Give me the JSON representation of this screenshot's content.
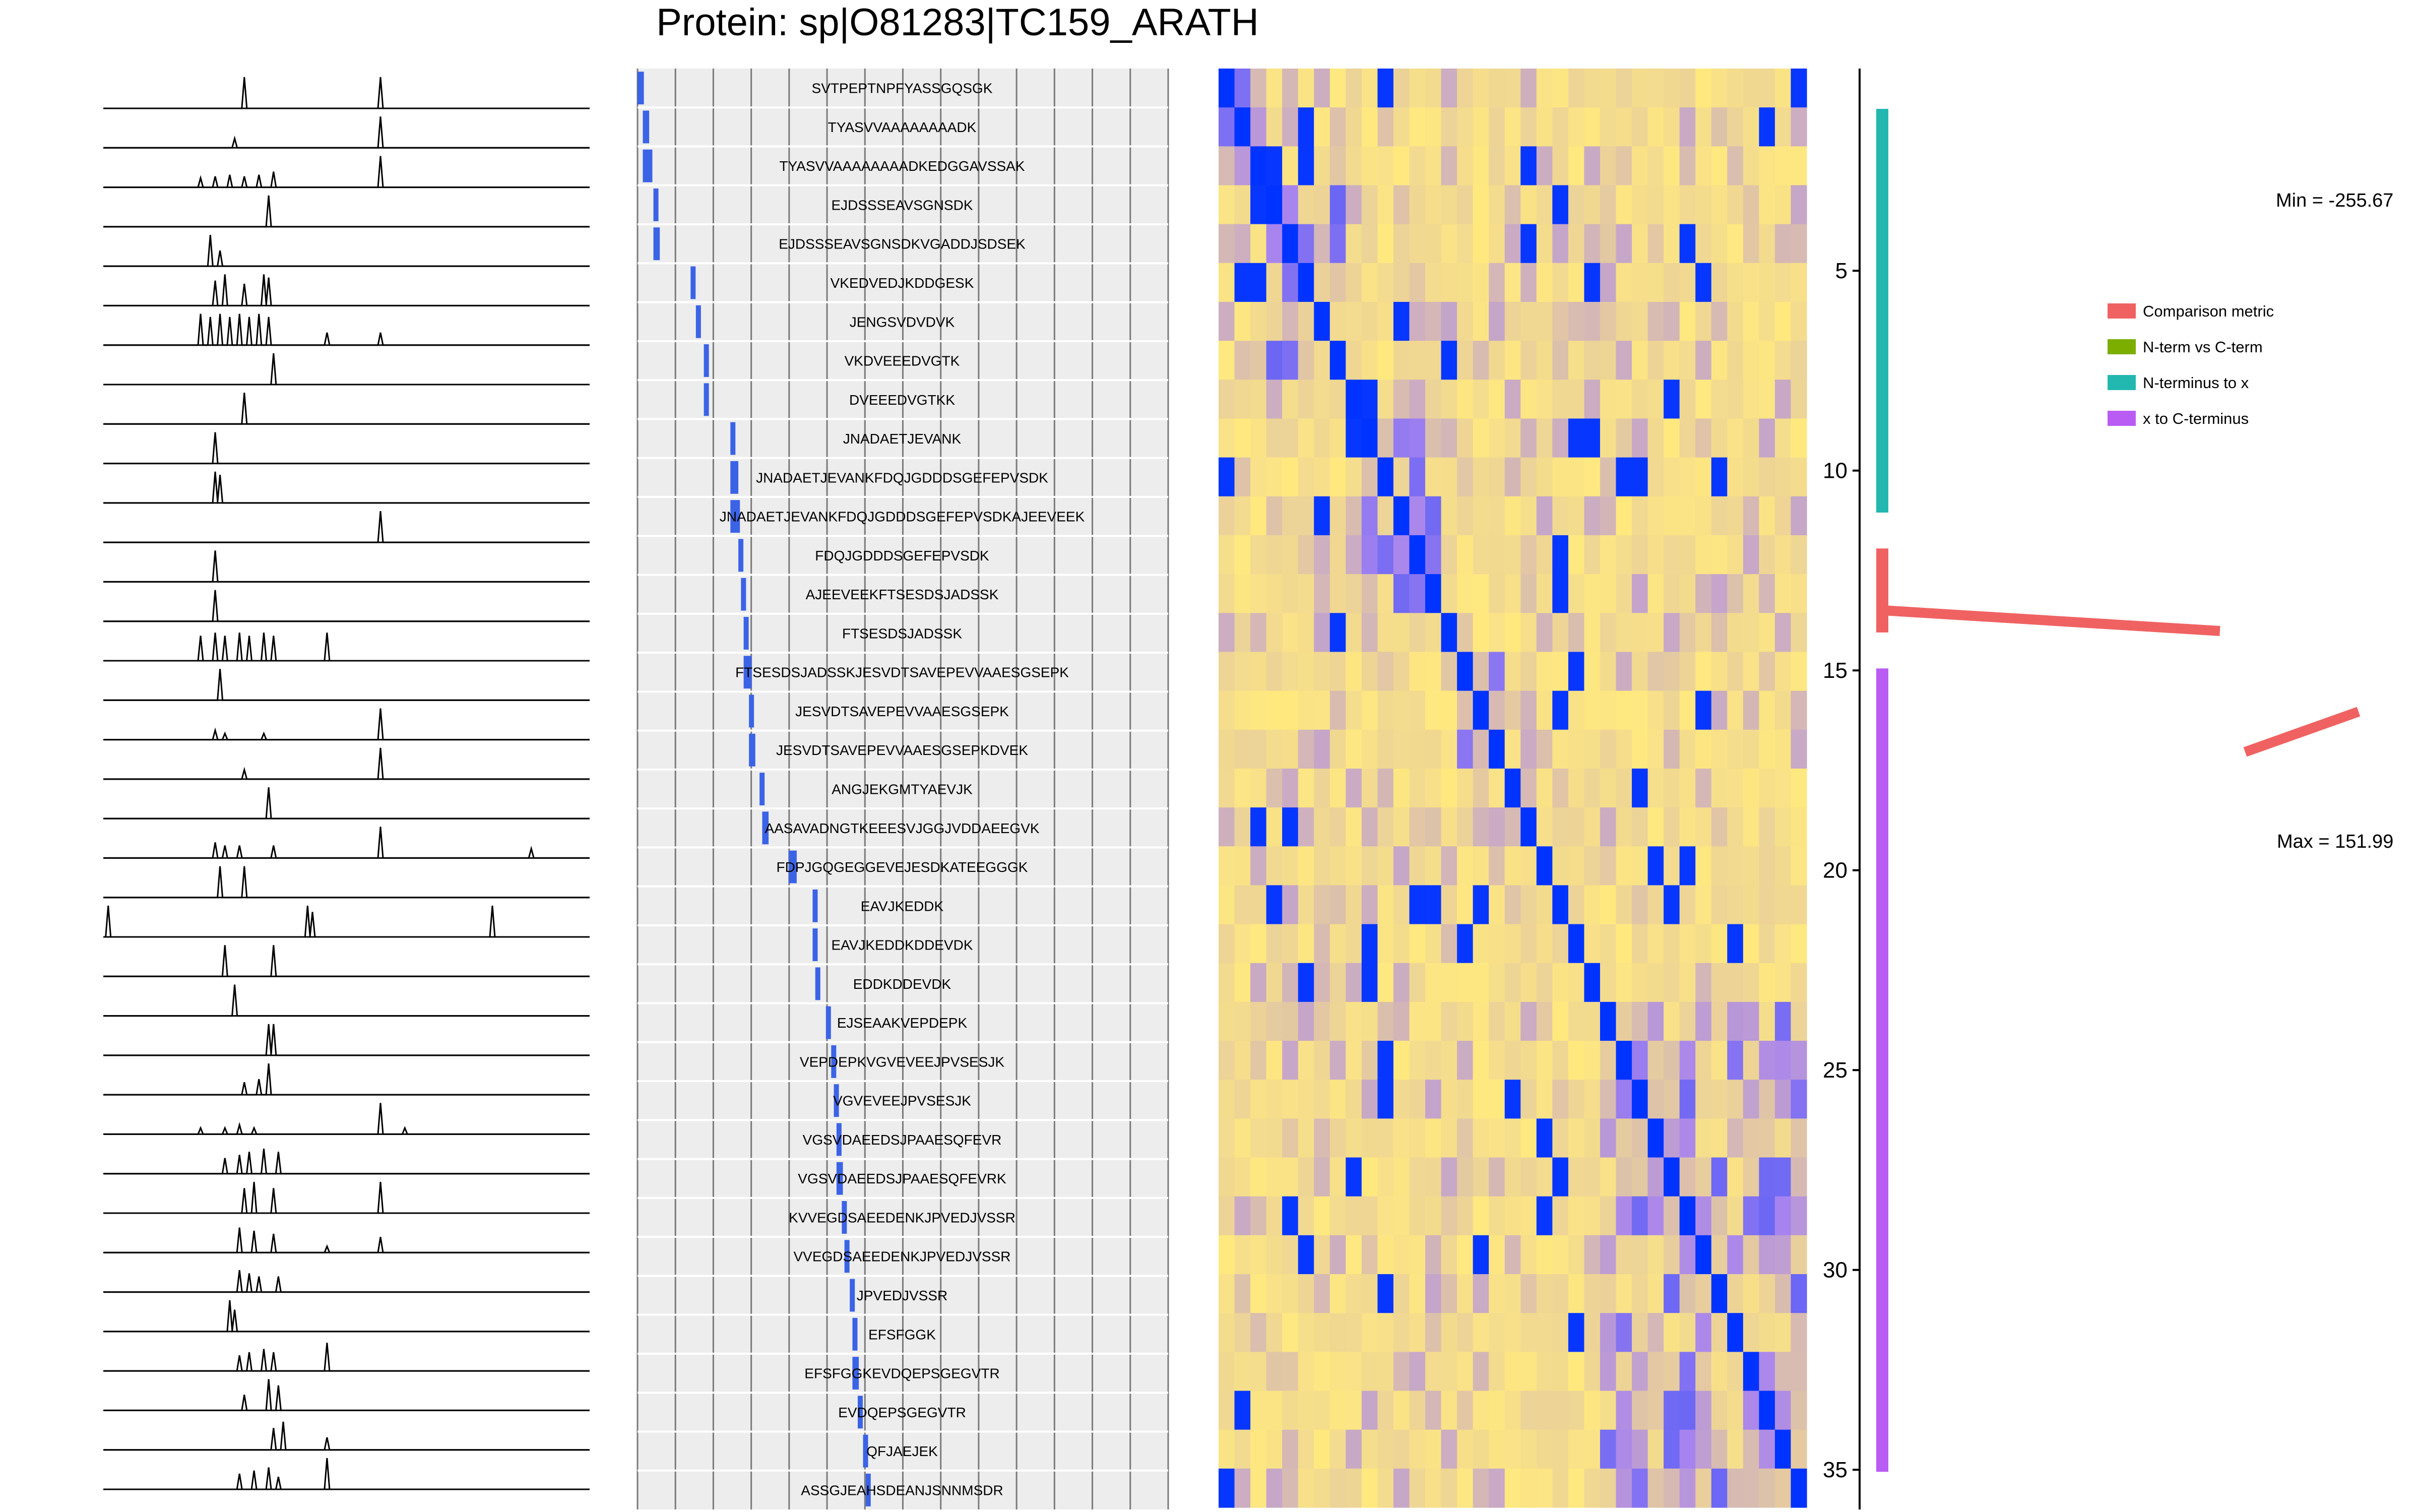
{
  "title": "Protein: sp|O81283|TC159_ARATH",
  "chart_data": [
    {
      "type": "line",
      "panel": "peptide-elution-profiles",
      "rows": 36,
      "profiles": [
        [
          [
            0.29,
            1
          ],
          [
            0.57,
            1
          ]
        ],
        [
          [
            0.27,
            0.3
          ],
          [
            0.57,
            1
          ]
        ],
        [
          [
            0.2,
            0.3
          ],
          [
            0.23,
            0.35
          ],
          [
            0.26,
            0.4
          ],
          [
            0.29,
            0.35
          ],
          [
            0.32,
            0.4
          ],
          [
            0.35,
            0.5
          ],
          [
            0.57,
            1
          ]
        ],
        [
          [
            0.34,
            1
          ]
        ],
        [
          [
            0.22,
            1
          ],
          [
            0.24,
            0.5
          ]
        ],
        [
          [
            0.23,
            0.8
          ],
          [
            0.25,
            1
          ],
          [
            0.29,
            0.7
          ],
          [
            0.33,
            1
          ],
          [
            0.34,
            0.9
          ]
        ],
        [
          [
            0.2,
            1
          ],
          [
            0.22,
            0.9
          ],
          [
            0.24,
            1
          ],
          [
            0.26,
            0.9
          ],
          [
            0.28,
            1
          ],
          [
            0.3,
            0.9
          ],
          [
            0.32,
            1
          ],
          [
            0.34,
            0.9
          ],
          [
            0.46,
            0.4
          ],
          [
            0.57,
            0.4
          ]
        ],
        [
          [
            0.35,
            1
          ]
        ],
        [
          [
            0.29,
            1
          ]
        ],
        [
          [
            0.23,
            1
          ]
        ],
        [
          [
            0.23,
            1
          ],
          [
            0.24,
            0.9
          ]
        ],
        [
          [
            0.57,
            1
          ]
        ],
        [
          [
            0.23,
            1
          ]
        ],
        [
          [
            0.23,
            1
          ]
        ],
        [
          [
            0.2,
            0.8
          ],
          [
            0.23,
            0.9
          ],
          [
            0.25,
            0.8
          ],
          [
            0.28,
            0.9
          ],
          [
            0.3,
            0.8
          ],
          [
            0.33,
            0.9
          ],
          [
            0.35,
            0.8
          ],
          [
            0.46,
            0.9
          ]
        ],
        [
          [
            0.24,
            1
          ]
        ],
        [
          [
            0.23,
            0.3
          ],
          [
            0.25,
            0.2
          ],
          [
            0.33,
            0.2
          ],
          [
            0.57,
            1
          ]
        ],
        [
          [
            0.29,
            0.3
          ],
          [
            0.57,
            1
          ]
        ],
        [
          [
            0.34,
            1
          ]
        ],
        [
          [
            0.23,
            0.5
          ],
          [
            0.25,
            0.4
          ],
          [
            0.28,
            0.4
          ],
          [
            0.35,
            0.4
          ],
          [
            0.57,
            1
          ],
          [
            0.88,
            0.3
          ]
        ],
        [
          [
            0.24,
            1
          ],
          [
            0.29,
            1
          ]
        ],
        [
          [
            0.01,
            1
          ],
          [
            0.42,
            1
          ],
          [
            0.43,
            0.8
          ],
          [
            0.8,
            1
          ]
        ],
        [
          [
            0.25,
            1
          ],
          [
            0.35,
            1
          ]
        ],
        [
          [
            0.27,
            1
          ]
        ],
        [
          [
            0.34,
            1
          ],
          [
            0.35,
            1
          ]
        ],
        [
          [
            0.29,
            0.4
          ],
          [
            0.32,
            0.5
          ],
          [
            0.34,
            1
          ]
        ],
        [
          [
            0.2,
            0.2
          ],
          [
            0.25,
            0.2
          ],
          [
            0.28,
            0.3
          ],
          [
            0.31,
            0.2
          ],
          [
            0.57,
            1
          ],
          [
            0.62,
            0.2
          ]
        ],
        [
          [
            0.25,
            0.5
          ],
          [
            0.28,
            0.6
          ],
          [
            0.3,
            0.7
          ],
          [
            0.33,
            0.8
          ],
          [
            0.36,
            0.7
          ]
        ],
        [
          [
            0.29,
            0.8
          ],
          [
            0.31,
            1
          ],
          [
            0.35,
            0.8
          ],
          [
            0.57,
            1
          ]
        ],
        [
          [
            0.28,
            0.8
          ],
          [
            0.31,
            0.7
          ],
          [
            0.35,
            0.6
          ],
          [
            0.46,
            0.2
          ],
          [
            0.57,
            0.5
          ]
        ],
        [
          [
            0.28,
            0.7
          ],
          [
            0.3,
            0.6
          ],
          [
            0.32,
            0.5
          ],
          [
            0.36,
            0.5
          ]
        ],
        [
          [
            0.26,
            1
          ],
          [
            0.27,
            0.7
          ]
        ],
        [
          [
            0.28,
            0.5
          ],
          [
            0.3,
            0.6
          ],
          [
            0.33,
            0.7
          ],
          [
            0.35,
            0.6
          ],
          [
            0.46,
            0.9
          ]
        ],
        [
          [
            0.29,
            0.5
          ],
          [
            0.34,
            1
          ],
          [
            0.36,
            0.8
          ]
        ],
        [
          [
            0.35,
            0.7
          ],
          [
            0.37,
            0.9
          ],
          [
            0.46,
            0.4
          ]
        ],
        [
          [
            0.28,
            0.5
          ],
          [
            0.31,
            0.6
          ],
          [
            0.34,
            0.7
          ],
          [
            0.36,
            0.4
          ],
          [
            0.46,
            1
          ]
        ]
      ]
    },
    {
      "type": "bar",
      "panel": "peptide-coverage",
      "orientation": "horizontal",
      "peptides": [
        {
          "label": "SVTPEPTNPFYASSGQSGK",
          "start": 0.0,
          "end": 0.02
        },
        {
          "label": "TYASVVAAAAAAAADK",
          "start": 0.01,
          "end": 0.03
        },
        {
          "label": "TYASVVAAAAAAAADKEDGGAVSSAK",
          "start": 0.01,
          "end": 0.04
        },
        {
          "label": "EJDSSSEAVSGNSDK",
          "start": 0.03,
          "end": 0.045
        },
        {
          "label": "EJDSSSEAVSGNSDKVGADDJSDSEK",
          "start": 0.03,
          "end": 0.05
        },
        {
          "label": "VKEDVEDJKDDGESK",
          "start": 0.1,
          "end": 0.11
        },
        {
          "label": "JENGSVDVDVK",
          "start": 0.11,
          "end": 0.12
        },
        {
          "label": "VKDVEEEDVGTK",
          "start": 0.125,
          "end": 0.135
        },
        {
          "label": "DVEEEDVGTKK",
          "start": 0.125,
          "end": 0.135
        },
        {
          "label": "JNADAETJEVANK",
          "start": 0.175,
          "end": 0.185
        },
        {
          "label": "JNADAETJEVANKFDQJGDDDSGEFEPVSDK",
          "start": 0.175,
          "end": 0.2
        },
        {
          "label": "JNADAETJEVANKFDQJGDDDSGEFEPVSDKAJEEVEEK",
          "start": 0.175,
          "end": 0.205
        },
        {
          "label": "FDQJGDDDSGEFEPVSDK",
          "start": 0.19,
          "end": 0.205
        },
        {
          "label": "AJEEVEEKFTSESDSJADSSK",
          "start": 0.195,
          "end": 0.21
        },
        {
          "label": "FTSESDSJADSSK",
          "start": 0.2,
          "end": 0.21
        },
        {
          "label": "FTSESDSJADSSKJESVDTSAVEPEVVAAESGSEPK",
          "start": 0.2,
          "end": 0.225
        },
        {
          "label": "JESVDTSAVEPEVVAAESGSEPK",
          "start": 0.21,
          "end": 0.225
        },
        {
          "label": "JESVDTSAVEPEVVAAESGSEPKDVEK",
          "start": 0.21,
          "end": 0.23
        },
        {
          "label": "ANGJEKGMTYAEVJK",
          "start": 0.23,
          "end": 0.24
        },
        {
          "label": "AASAVADNGTKEEESVJGGJVDDAEEGVK",
          "start": 0.235,
          "end": 0.255
        },
        {
          "label": "FDPJGQGEGGEVEJESDKATEEGGGK",
          "start": 0.285,
          "end": 0.31
        },
        {
          "label": "EAVJKEDDK",
          "start": 0.33,
          "end": 0.34
        },
        {
          "label": "EAVJKEDDKDDEVDK",
          "start": 0.33,
          "end": 0.345
        },
        {
          "label": "EDDKDDEVDK",
          "start": 0.335,
          "end": 0.345
        },
        {
          "label": "EJSEAAKVEPDEPK",
          "start": 0.355,
          "end": 0.37
        },
        {
          "label": "VEPDEPKVGVEVEEJPVSESJK",
          "start": 0.365,
          "end": 0.38
        },
        {
          "label": "VGVEVEEJPVSESJK",
          "start": 0.37,
          "end": 0.385
        },
        {
          "label": "VGSVDAEEDSJPAAESQFEVR",
          "start": 0.375,
          "end": 0.39
        },
        {
          "label": "VGSVDAEEDSJPAAESQFEVRK",
          "start": 0.375,
          "end": 0.395
        },
        {
          "label": "KVVEGDSAEEDENKJPVEDJVSSR",
          "start": 0.385,
          "end": 0.4
        },
        {
          "label": "VVEGDSAEEDENKJPVEDJVSSR",
          "start": 0.39,
          "end": 0.405
        },
        {
          "label": "JPVEDJVSSR",
          "start": 0.4,
          "end": 0.41
        },
        {
          "label": "EFSFGGK",
          "start": 0.405,
          "end": 0.415
        },
        {
          "label": "EFSFGGKEVDQEPSGEGVTR",
          "start": 0.405,
          "end": 0.425
        },
        {
          "label": "EVDQEPSGEGVTR",
          "start": 0.415,
          "end": 0.43
        },
        {
          "label": "QFJAEJEK",
          "start": 0.425,
          "end": 0.435
        },
        {
          "label": "ASSGJEAHSDEANJSNNMSDR",
          "start": 0.43,
          "end": 0.445
        }
      ]
    },
    {
      "type": "heatmap",
      "panel": "peptide-correlation",
      "rows": 37,
      "cols": 37,
      "y_ticks": [
        5,
        10,
        15,
        20,
        25,
        30,
        35
      ],
      "low_color": "#0033ff",
      "high_color": "#ffe97f",
      "blocks": [
        [
          1,
          3
        ],
        [
          4,
          8
        ],
        [
          10,
          14
        ],
        [
          16,
          18
        ],
        [
          25,
          37
        ]
      ]
    },
    {
      "type": "line",
      "panel": "cluster-segments",
      "segments": [
        {
          "name": "N-terminus to x",
          "color": "#22b8b0",
          "rows": [
            1,
            11
          ]
        },
        {
          "name": "Comparison metric",
          "color": "#f06262",
          "rows": [
            12,
            14
          ]
        },
        {
          "name": "x to C-terminus",
          "color": "#b95cf4",
          "rows": [
            15,
            35
          ]
        }
      ],
      "metric_line": {
        "color": "#f06262",
        "min_label": "Min = -255.67",
        "max_label": "Max = 151.99"
      }
    }
  ],
  "legend": [
    {
      "label": "Comparison metric",
      "color": "#f06262"
    },
    {
      "label": "N-term vs C-term",
      "color": "#7cae00"
    },
    {
      "label": "N-terminus to x",
      "color": "#22b8b0"
    },
    {
      "label": "x to C-terminus",
      "color": "#b95cf4"
    }
  ]
}
